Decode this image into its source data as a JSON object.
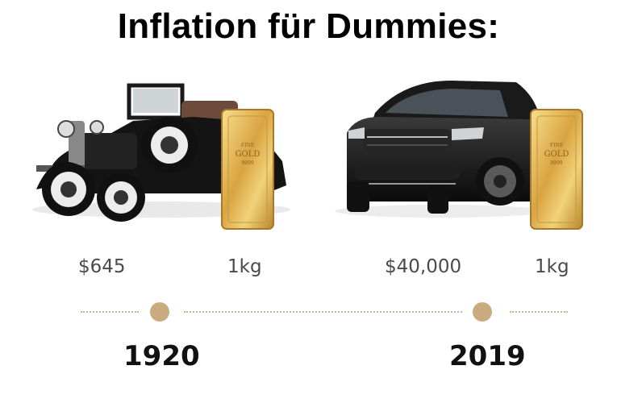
{
  "title": "Inflation für Dummies:",
  "left": {
    "price": "$645",
    "gold": "1kg",
    "year": "1920",
    "car_icon": "vintage-car-icon",
    "gold_icon": "gold-bar-icon"
  },
  "right": {
    "price": "$40,000",
    "gold": "1kg",
    "year": "2019",
    "car_icon": "suv-car-icon",
    "gold_icon": "gold-bar-icon"
  },
  "gold_bar_text": [
    "FINE",
    "GOLD",
    "9999"
  ],
  "colors": {
    "gold": "#d9a441",
    "timeline_dot": "#c9ab7f",
    "timeline_line": "#c7b79a"
  }
}
